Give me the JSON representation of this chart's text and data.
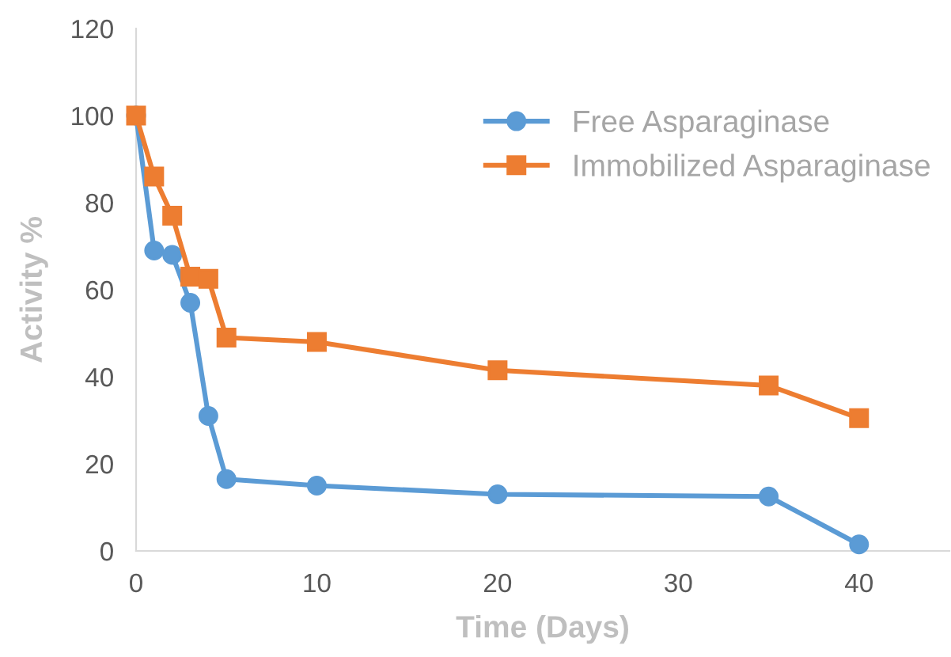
{
  "chart_data": {
    "type": "line",
    "xlabel": "Time (Days)",
    "ylabel": "Activity %",
    "x": [
      0,
      1,
      2,
      3,
      4,
      5,
      10,
      20,
      35,
      40
    ],
    "series": [
      {
        "name": "Free Asparaginase",
        "color": "#5b9bd5",
        "marker": "circle",
        "values": [
          100,
          69,
          68,
          57,
          31,
          16.5,
          15,
          13,
          12.5,
          1.5
        ]
      },
      {
        "name": "Immobilized Asparaginase",
        "color": "#ed7d31",
        "marker": "square",
        "values": [
          100,
          86,
          77,
          63,
          62.5,
          49,
          48,
          41.5,
          38,
          30.5
        ]
      }
    ],
    "xlim": [
      0,
      45
    ],
    "xticks": [
      0,
      10,
      20,
      30,
      40
    ],
    "ylim": [
      0,
      120
    ],
    "yticks": [
      0,
      20,
      40,
      60,
      80,
      100,
      120
    ],
    "grid": false,
    "legend": "top right"
  }
}
